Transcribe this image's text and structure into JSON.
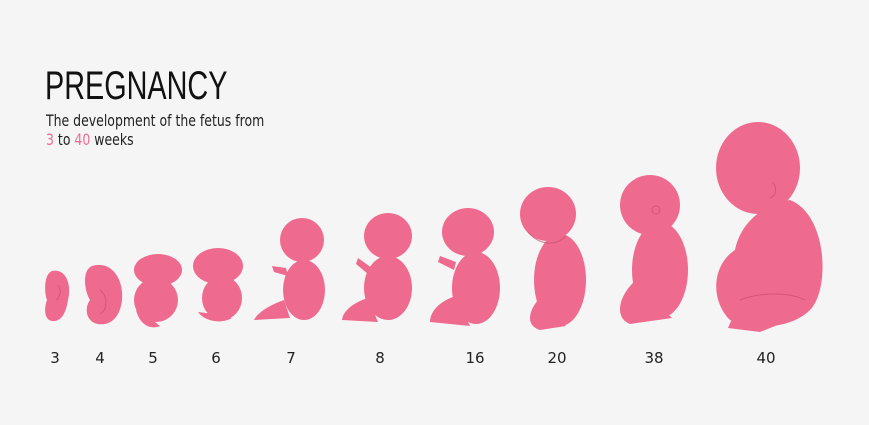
{
  "header": {
    "title": "PREGNANCY",
    "subtitle_line1": "The development of the fetus from",
    "subtitle_start": "3",
    "subtitle_to": "to",
    "subtitle_end": "40",
    "subtitle_unit": "weeks"
  },
  "colors": {
    "accent": "#ee6b8f",
    "background": "#f5f5f5",
    "text": "#111111"
  },
  "stages": [
    {
      "week": "3"
    },
    {
      "week": "4"
    },
    {
      "week": "5"
    },
    {
      "week": "6"
    },
    {
      "week": "7"
    },
    {
      "week": "8"
    },
    {
      "week": "16"
    },
    {
      "week": "20"
    },
    {
      "week": "38"
    },
    {
      "week": "40"
    }
  ]
}
